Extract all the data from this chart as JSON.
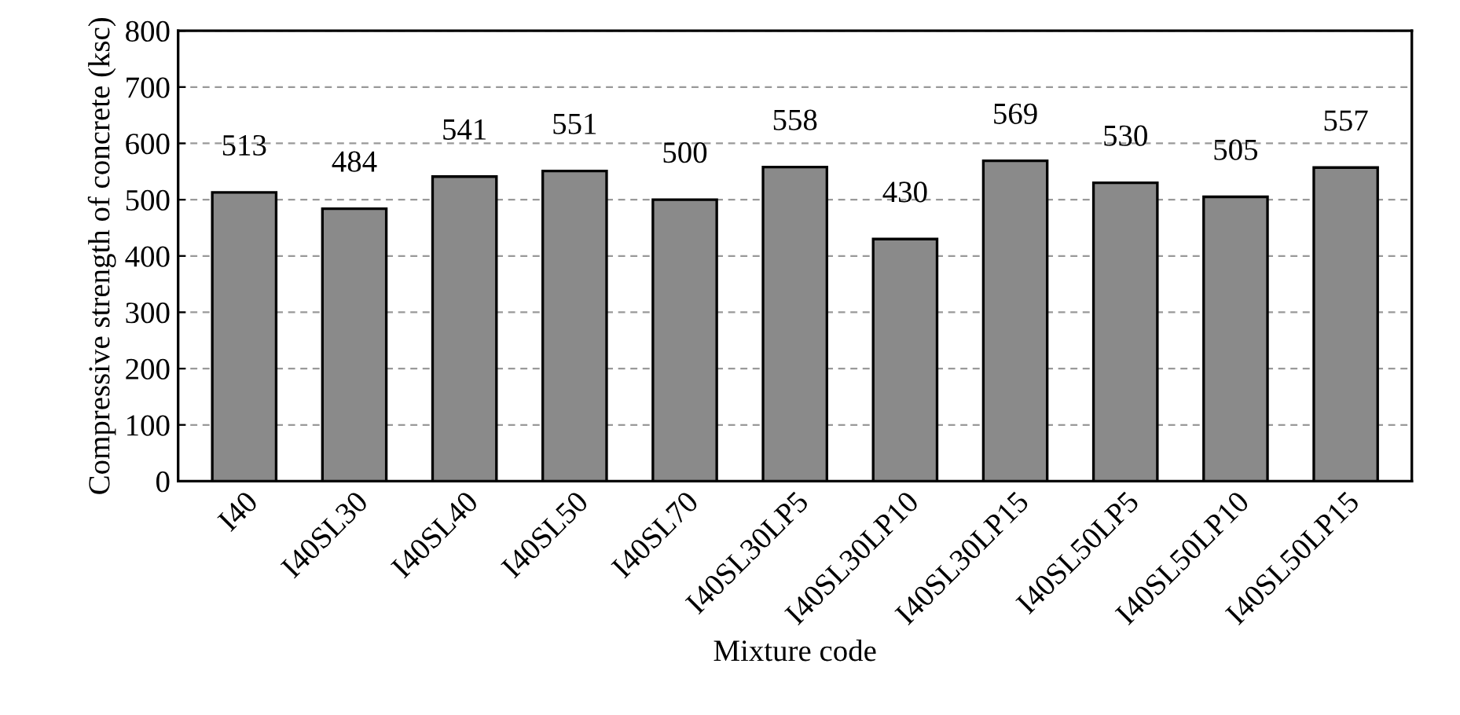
{
  "chart_data": {
    "type": "bar",
    "xlabel": "Mixture code",
    "ylabel": "Compressive strength of concrete (ksc)",
    "categories": [
      "I40",
      "I40SL30",
      "I40SL40",
      "I40SL50",
      "I40SL70",
      "I40SL30LP5",
      "I40SL30LP10",
      "I40SL30LP15",
      "I40SL50LP5",
      "I40SL50LP10",
      "I40SL50LP15"
    ],
    "values": [
      513,
      484,
      541,
      551,
      500,
      558,
      430,
      569,
      530,
      505,
      557
    ],
    "color": "#8a8a8a",
    "ylim": [
      0,
      800
    ],
    "yticks": [
      0,
      100,
      200,
      300,
      400,
      500,
      600,
      700,
      800
    ],
    "grid": "y",
    "data_labels": true
  }
}
